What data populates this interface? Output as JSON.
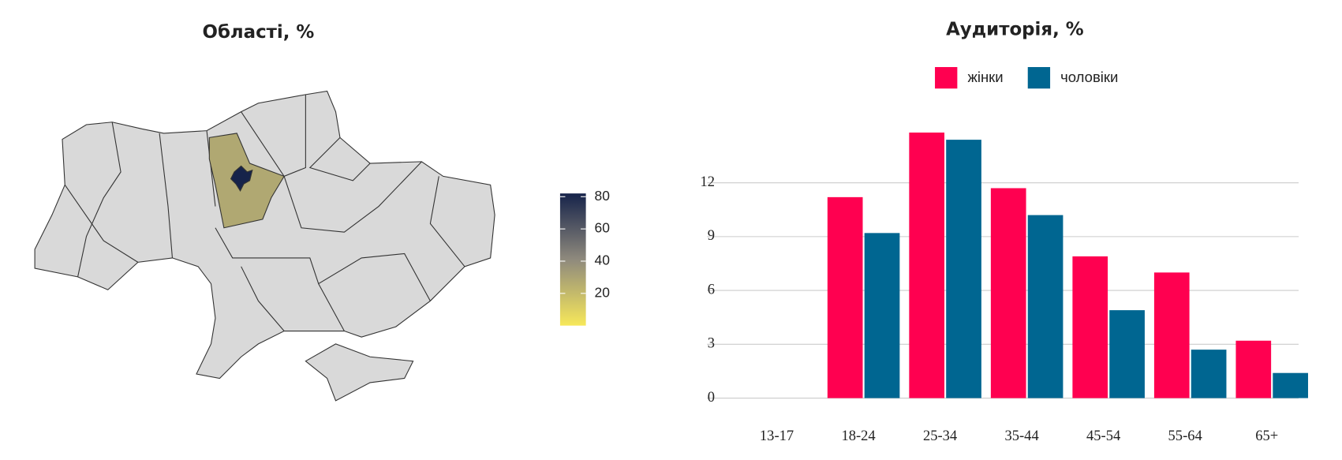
{
  "chart_data": [
    {
      "type": "choropleth",
      "title": "Області, %",
      "values": [
        28,
        82
      ],
      "clim": [
        0,
        82
      ],
      "cticks": [
        20,
        40,
        60,
        80
      ],
      "colors": [
        "#f7e85a",
        "#8f8a7d",
        "#16234a"
      ]
    },
    {
      "type": "bar",
      "title": "Аудиторія, %",
      "categories": [
        "13-17",
        "18-24",
        "25-34",
        "35-44",
        "45-54",
        "55-64",
        "65+"
      ],
      "series": [
        {
          "name": "жінки",
          "color": "#ff0050",
          "values": [
            0,
            11.2,
            14.8,
            11.7,
            7.9,
            7.0,
            3.2
          ]
        },
        {
          "name": "чоловіки",
          "color": "#006691",
          "values": [
            0,
            9.2,
            14.4,
            10.2,
            4.9,
            2.7,
            1.4
          ]
        }
      ],
      "ylim": [
        0,
        15
      ],
      "yticks": [
        0,
        3,
        6,
        9,
        12
      ],
      "grid": true,
      "legend": "top"
    }
  ]
}
